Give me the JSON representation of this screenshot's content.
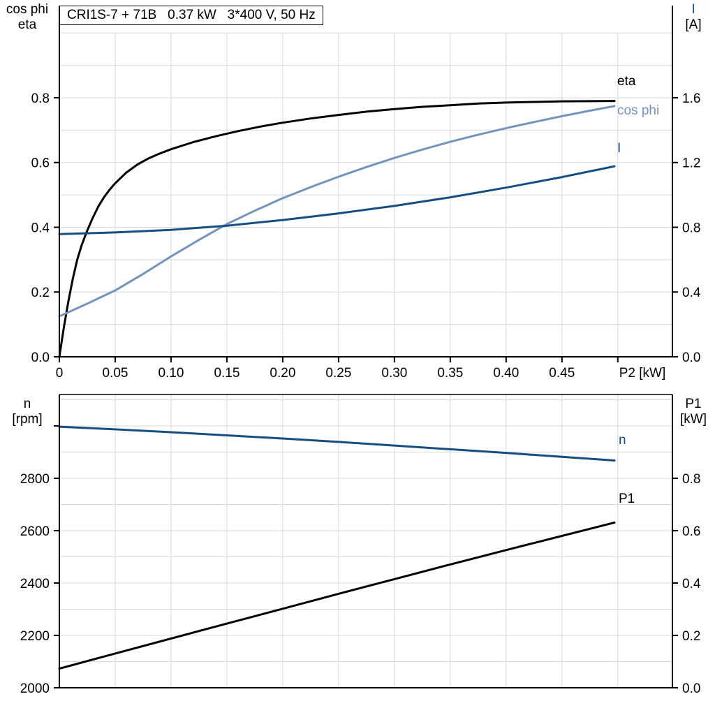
{
  "title_box": {
    "text": "CRI1S-7 + 71B   0.37 kW   3*400 V, 50 Hz"
  },
  "colors": {
    "eta": "#000000",
    "cos_phi": "#7494BC",
    "current": "#174E82",
    "n": "#174E82",
    "p1": "#000000",
    "grid": "#D8D8D8",
    "axis": "#000000",
    "background": "#FFFFFF"
  },
  "top_chart": {
    "left_axis_label_line1": "cos phi",
    "left_axis_label_line2": "eta",
    "right_axis_label_line1": "I",
    "right_axis_label_line2": "[A]",
    "x_axis_label": "P2 [kW]",
    "curve_labels": {
      "eta": "eta",
      "cos_phi": "cos phi",
      "current": "I"
    },
    "left_ticks": [
      {
        "v": 0.0,
        "label": "0.0"
      },
      {
        "v": 0.2,
        "label": "0.2"
      },
      {
        "v": 0.4,
        "label": "0.4"
      },
      {
        "v": 0.6,
        "label": "0.6"
      },
      {
        "v": 0.8,
        "label": "0.8"
      }
    ],
    "right_ticks": [
      {
        "v": 0.0,
        "label": "0.0"
      },
      {
        "v": 0.4,
        "label": "0.4"
      },
      {
        "v": 0.8,
        "label": "0.8"
      },
      {
        "v": 1.2,
        "label": "1.2"
      },
      {
        "v": 1.6,
        "label": "1.6"
      }
    ],
    "x_ticks": [
      {
        "v": 0.0,
        "label": "0"
      },
      {
        "v": 0.05,
        "label": "0.05"
      },
      {
        "v": 0.1,
        "label": "0.10"
      },
      {
        "v": 0.15,
        "label": "0.15"
      },
      {
        "v": 0.2,
        "label": "0.20"
      },
      {
        "v": 0.25,
        "label": "0.25"
      },
      {
        "v": 0.3,
        "label": "0.30"
      },
      {
        "v": 0.35,
        "label": "0.35"
      },
      {
        "v": 0.4,
        "label": "0.40"
      },
      {
        "v": 0.45,
        "label": "0.45"
      },
      {
        "v": 0.5,
        "label": ""
      }
    ]
  },
  "bottom_chart": {
    "left_axis_label_line1": "n",
    "left_axis_label_line2": "[rpm]",
    "right_axis_label_line1": "P1",
    "right_axis_label_line2": "[kW]",
    "curve_labels": {
      "n": "n",
      "p1": "P1"
    },
    "left_ticks": [
      {
        "v": 2000,
        "label": "2000"
      },
      {
        "v": 2200,
        "label": "2200"
      },
      {
        "v": 2400,
        "label": "2400"
      },
      {
        "v": 2600,
        "label": "2600"
      },
      {
        "v": 2800,
        "label": "2800"
      },
      {
        "v": 3000,
        "label": ""
      }
    ],
    "right_ticks": [
      {
        "v": 0.0,
        "label": "0.0"
      },
      {
        "v": 0.2,
        "label": "0.2"
      },
      {
        "v": 0.4,
        "label": "0.4"
      },
      {
        "v": 0.6,
        "label": "0.6"
      },
      {
        "v": 0.8,
        "label": "0.8"
      }
    ],
    "x_ticks": [
      {
        "v": 0.0,
        "label": ""
      },
      {
        "v": 0.05,
        "label": ""
      },
      {
        "v": 0.1,
        "label": ""
      },
      {
        "v": 0.15,
        "label": ""
      },
      {
        "v": 0.2,
        "label": ""
      },
      {
        "v": 0.25,
        "label": ""
      },
      {
        "v": 0.3,
        "label": ""
      },
      {
        "v": 0.35,
        "label": ""
      },
      {
        "v": 0.4,
        "label": ""
      },
      {
        "v": 0.45,
        "label": ""
      },
      {
        "v": 0.5,
        "label": ""
      }
    ]
  },
  "chart_data": [
    {
      "type": "line",
      "title": "CRI1S-7 + 71B   0.37 kW   3*400 V, 50 Hz",
      "xlabel": "P2 [kW]",
      "ylabel_left": "cos phi / eta",
      "ylabel_right": "I [A]",
      "x_range": [
        0,
        0.5489
      ],
      "left_axis": {
        "range": [
          0,
          1.0846
        ],
        "tick_step": 0.2,
        "grid_step": 0.1
      },
      "right_axis": {
        "range": [
          0,
          2.1692
        ],
        "tick_step": 0.4
      },
      "grid": true,
      "series": [
        {
          "name": "eta",
          "axis": "left",
          "color_key": "eta",
          "points": [
            [
              0,
              0
            ],
            [
              0.004,
              0.09
            ],
            [
              0.008,
              0.17
            ],
            [
              0.012,
              0.24
            ],
            [
              0.016,
              0.3
            ],
            [
              0.02,
              0.345
            ],
            [
              0.025,
              0.39
            ],
            [
              0.03,
              0.43
            ],
            [
              0.035,
              0.465
            ],
            [
              0.04,
              0.493
            ],
            [
              0.045,
              0.516
            ],
            [
              0.05,
              0.536
            ],
            [
              0.06,
              0.569
            ],
            [
              0.07,
              0.594
            ],
            [
              0.08,
              0.613
            ],
            [
              0.09,
              0.628
            ],
            [
              0.1,
              0.641
            ],
            [
              0.12,
              0.663
            ],
            [
              0.14,
              0.681
            ],
            [
              0.16,
              0.697
            ],
            [
              0.18,
              0.711
            ],
            [
              0.2,
              0.723
            ],
            [
              0.225,
              0.736
            ],
            [
              0.25,
              0.747
            ],
            [
              0.275,
              0.757
            ],
            [
              0.3,
              0.765
            ],
            [
              0.325,
              0.772
            ],
            [
              0.35,
              0.777
            ],
            [
              0.375,
              0.782
            ],
            [
              0.4,
              0.785
            ],
            [
              0.425,
              0.787
            ],
            [
              0.45,
              0.789
            ],
            [
              0.497,
              0.79
            ]
          ]
        },
        {
          "name": "cos phi",
          "axis": "left",
          "color_key": "cos_phi",
          "points": [
            [
              0,
              0.125
            ],
            [
              0.025,
              0.164
            ],
            [
              0.05,
              0.205
            ],
            [
              0.075,
              0.256
            ],
            [
              0.1,
              0.31
            ],
            [
              0.125,
              0.361
            ],
            [
              0.15,
              0.41
            ],
            [
              0.175,
              0.451
            ],
            [
              0.2,
              0.49
            ],
            [
              0.225,
              0.524
            ],
            [
              0.25,
              0.556
            ],
            [
              0.275,
              0.586
            ],
            [
              0.3,
              0.614
            ],
            [
              0.325,
              0.64
            ],
            [
              0.35,
              0.664
            ],
            [
              0.375,
              0.686
            ],
            [
              0.4,
              0.706
            ],
            [
              0.425,
              0.725
            ],
            [
              0.45,
              0.743
            ],
            [
              0.475,
              0.76
            ],
            [
              0.497,
              0.774
            ]
          ]
        },
        {
          "name": "I",
          "axis": "right",
          "color_key": "current",
          "points": [
            [
              0,
              0.758
            ],
            [
              0.05,
              0.768
            ],
            [
              0.1,
              0.784
            ],
            [
              0.15,
              0.81
            ],
            [
              0.2,
              0.845
            ],
            [
              0.25,
              0.886
            ],
            [
              0.3,
              0.932
            ],
            [
              0.35,
              0.985
            ],
            [
              0.4,
              1.045
            ],
            [
              0.45,
              1.11
            ],
            [
              0.497,
              1.177
            ]
          ]
        }
      ]
    },
    {
      "type": "line",
      "xlabel": "P2 [kW]",
      "ylabel_left": "n [rpm]",
      "ylabel_right": "P1 [kW]",
      "x_range": [
        0,
        0.5489
      ],
      "left_axis": {
        "range": [
          2000,
          3120
        ],
        "tick_step": 200,
        "grid_step": 100
      },
      "right_axis": {
        "range": [
          0,
          1.12
        ],
        "tick_step": 0.2
      },
      "grid": true,
      "series": [
        {
          "name": "n",
          "axis": "left",
          "color_key": "n",
          "points": [
            [
              0,
              2997
            ],
            [
              0.05,
              2987
            ],
            [
              0.1,
              2976
            ],
            [
              0.15,
              2964
            ],
            [
              0.2,
              2952
            ],
            [
              0.25,
              2939
            ],
            [
              0.3,
              2925
            ],
            [
              0.35,
              2911
            ],
            [
              0.4,
              2897
            ],
            [
              0.45,
              2882
            ],
            [
              0.497,
              2868
            ]
          ]
        },
        {
          "name": "P1",
          "axis": "right",
          "color_key": "p1",
          "points": [
            [
              0,
              0.073
            ],
            [
              0.05,
              0.131
            ],
            [
              0.1,
              0.188
            ],
            [
              0.15,
              0.245
            ],
            [
              0.2,
              0.302
            ],
            [
              0.25,
              0.359
            ],
            [
              0.3,
              0.415
            ],
            [
              0.35,
              0.471
            ],
            [
              0.4,
              0.526
            ],
            [
              0.45,
              0.58
            ],
            [
              0.497,
              0.631
            ]
          ]
        }
      ]
    }
  ]
}
